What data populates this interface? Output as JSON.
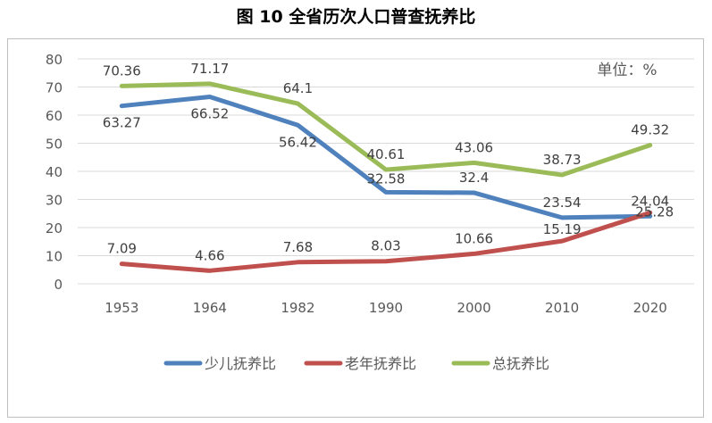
{
  "title": "图 10  全省历次人口普查抚养比",
  "unit_note": "单位：%",
  "chart_data": {
    "type": "line",
    "title": "图 10  全省历次人口普查抚养比",
    "categories": [
      "1953",
      "1964",
      "1982",
      "1990",
      "2000",
      "2010",
      "2020"
    ],
    "ylim": [
      0,
      80
    ],
    "yticks": [
      0,
      10,
      20,
      30,
      40,
      50,
      60,
      70,
      80
    ],
    "grid": true,
    "legend_position": "bottom",
    "series": [
      {
        "name": "少儿抚养比",
        "color": "#4f81bd",
        "values": [
          63.27,
          66.52,
          56.42,
          32.58,
          32.4,
          23.54,
          24.04
        ]
      },
      {
        "name": "老年抚养比",
        "color": "#c0504d",
        "values": [
          7.09,
          4.66,
          7.68,
          8.03,
          10.66,
          15.19,
          25.28
        ]
      },
      {
        "name": "总抚养比",
        "color": "#9bbb59",
        "values": [
          70.36,
          71.17,
          64.1,
          40.61,
          43.06,
          38.73,
          49.32
        ]
      }
    ]
  }
}
